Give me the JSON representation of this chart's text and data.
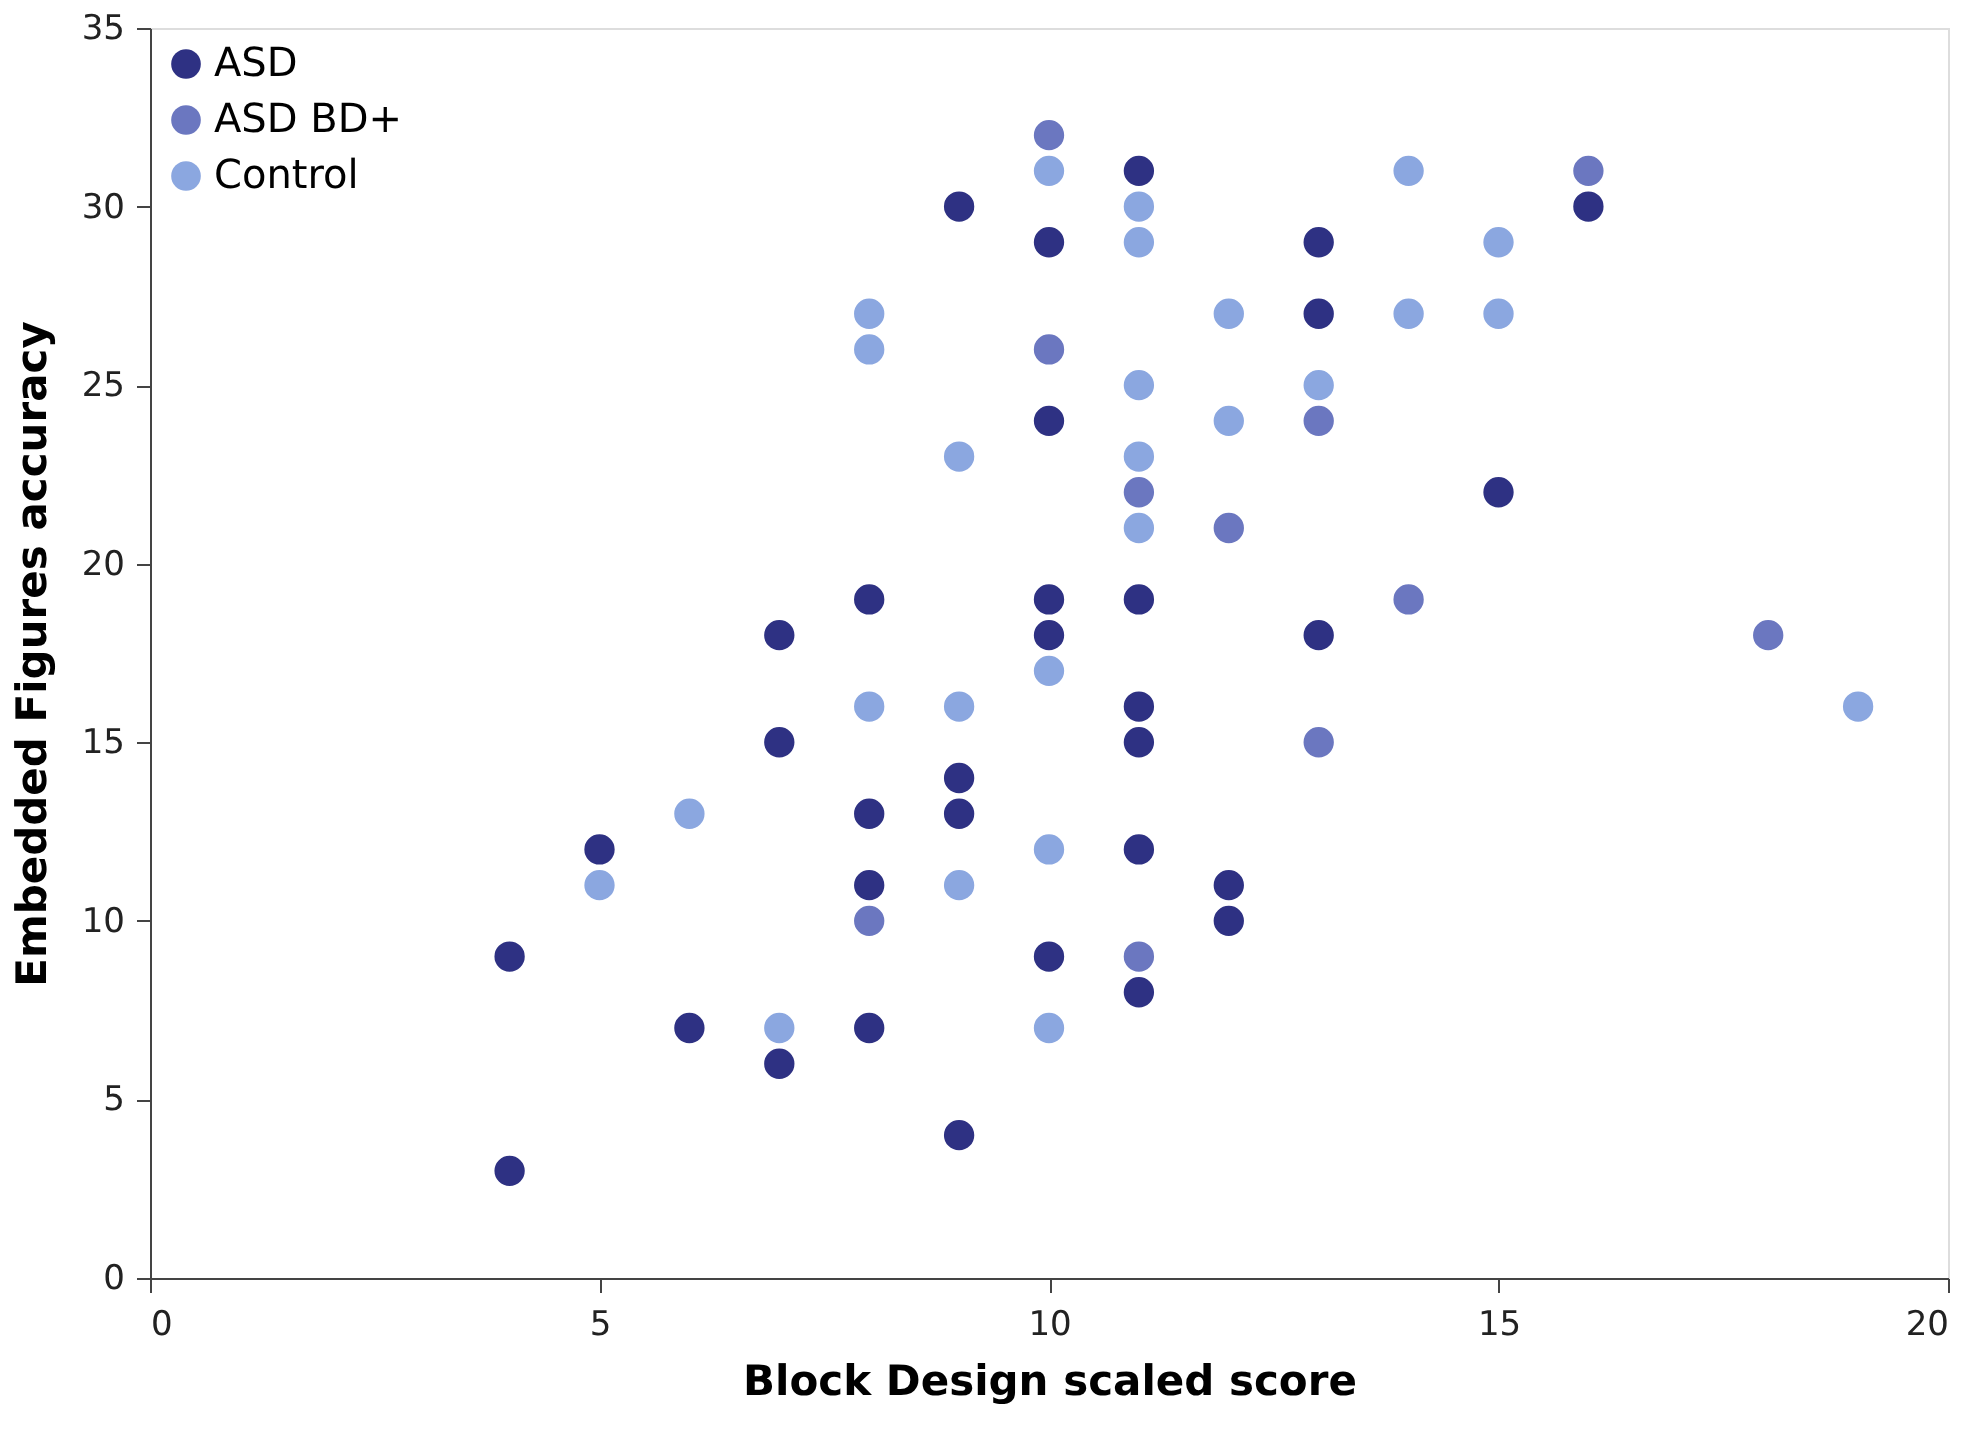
{
  "chart_data": {
    "type": "scatter",
    "xlabel": "Block Design scaled score",
    "ylabel": "Embedded Figures accuracy",
    "xlim": [
      0,
      20
    ],
    "xticks": [
      0,
      5,
      10,
      15,
      20
    ],
    "ylim": [
      0,
      35
    ],
    "yticks": [
      0,
      5,
      10,
      15,
      20,
      25,
      30,
      35
    ],
    "grid": false,
    "legend": "top left",
    "marker": "circle",
    "series": [
      {
        "name": "ASD",
        "color": "#2e3183",
        "x": [
          4,
          4,
          5,
          6,
          7,
          7,
          7,
          8,
          8,
          8,
          8,
          9,
          9,
          9,
          9,
          10,
          10,
          10,
          10,
          10,
          11,
          11,
          11,
          11,
          11,
          11,
          12,
          12,
          13,
          13,
          13,
          15,
          16
        ],
        "values": [
          9,
          3,
          12,
          7,
          18,
          15,
          6,
          19,
          13,
          11,
          7,
          30,
          14,
          13,
          4,
          29,
          24,
          19,
          18,
          9,
          31,
          19,
          16,
          15,
          12,
          8,
          11,
          10,
          29,
          27,
          18,
          22,
          30
        ]
      },
      {
        "name": "ASD BD+",
        "color": "#6b77c0",
        "x": [
          8,
          10,
          10,
          11,
          11,
          12,
          13,
          13,
          14,
          16,
          18
        ],
        "values": [
          10,
          32,
          26,
          22,
          9,
          21,
          24,
          15,
          19,
          31,
          18
        ]
      },
      {
        "name": "Control",
        "color": "#8ba7e0",
        "x": [
          5,
          6,
          7,
          8,
          8,
          8,
          9,
          9,
          9,
          10,
          10,
          10,
          10,
          11,
          11,
          11,
          11,
          11,
          12,
          12,
          13,
          14,
          14,
          15,
          15,
          19
        ],
        "values": [
          11,
          13,
          7,
          27,
          26,
          16,
          23,
          16,
          11,
          31,
          17,
          12,
          7,
          30,
          29,
          25,
          23,
          21,
          27,
          24,
          25,
          31,
          27,
          29,
          27,
          16
        ]
      }
    ]
  }
}
